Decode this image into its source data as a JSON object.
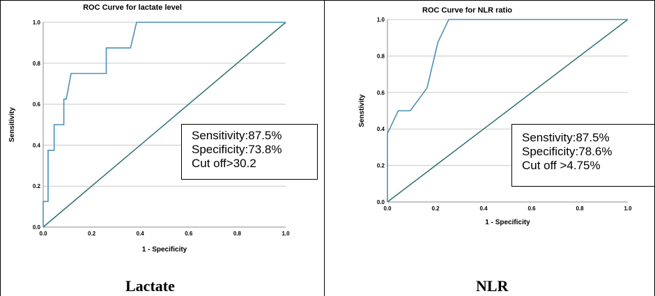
{
  "chart_data": [
    {
      "type": "line",
      "title": "ROC Curve for lactate level",
      "xlabel": "1 - Specificity",
      "ylabel": "Sensitivity",
      "xlim": [
        0,
        1
      ],
      "ylim": [
        0,
        1
      ],
      "x_ticks": [
        "0.0",
        "0.2",
        "0.4",
        "0.6",
        "0.8",
        "1.0"
      ],
      "y_ticks": [
        "0.0",
        "0.2",
        "0.4",
        "0.6",
        "0.8",
        "1.0"
      ],
      "grid": "horizontal",
      "colors": {
        "roc": "#4a90b8",
        "reference": "#2e6f6f",
        "grid": "#c8c8c8"
      },
      "series": [
        {
          "role": "roc-curve",
          "x": [
            0,
            0,
            0.02,
            0.02,
            0.045,
            0.045,
            0.085,
            0.085,
            0.095,
            0.115,
            0.26,
            0.26,
            0.36,
            0.385,
            1.0
          ],
          "y": [
            0,
            0.125,
            0.125,
            0.375,
            0.375,
            0.5,
            0.5,
            0.625,
            0.625,
            0.75,
            0.75,
            0.875,
            0.875,
            1.0,
            1.0
          ]
        },
        {
          "role": "reference-line",
          "x": [
            0,
            1
          ],
          "y": [
            0,
            1
          ]
        }
      ],
      "annotation": [
        "Sensitivity:87.5%",
        "Specificity:73.8%",
        "Cut off>30.2"
      ],
      "panel_label": "Lactate"
    },
    {
      "type": "line",
      "title": "ROC Curve for NLR ratio",
      "xlabel": "1 - Specificity",
      "ylabel": "Senstivity",
      "xlim": [
        0,
        1
      ],
      "ylim": [
        0,
        1
      ],
      "x_ticks": [
        "0.0",
        "0.2",
        "0.4",
        "0.6",
        "0.8",
        "1.0"
      ],
      "y_ticks": [
        "0.0",
        "0.2",
        "0.4",
        "0.6",
        "0.8",
        "1.0"
      ],
      "grid": "horizontal",
      "colors": {
        "roc": "#4a90b8",
        "reference": "#2e6f6f",
        "grid": "#c8c8c8"
      },
      "series": [
        {
          "role": "roc-curve",
          "x": [
            0,
            0,
            0.045,
            0.095,
            0.165,
            0.21,
            0.255,
            1.0
          ],
          "y": [
            0,
            0.375,
            0.5,
            0.5,
            0.625,
            0.875,
            1.0,
            1.0
          ]
        },
        {
          "role": "reference-line",
          "x": [
            0,
            1
          ],
          "y": [
            0,
            1
          ]
        }
      ],
      "annotation": [
        "Senstivity:87.5%",
        "Specificity:78.6%",
        "Cut off >4.75%"
      ],
      "panel_label": "NLR"
    }
  ]
}
